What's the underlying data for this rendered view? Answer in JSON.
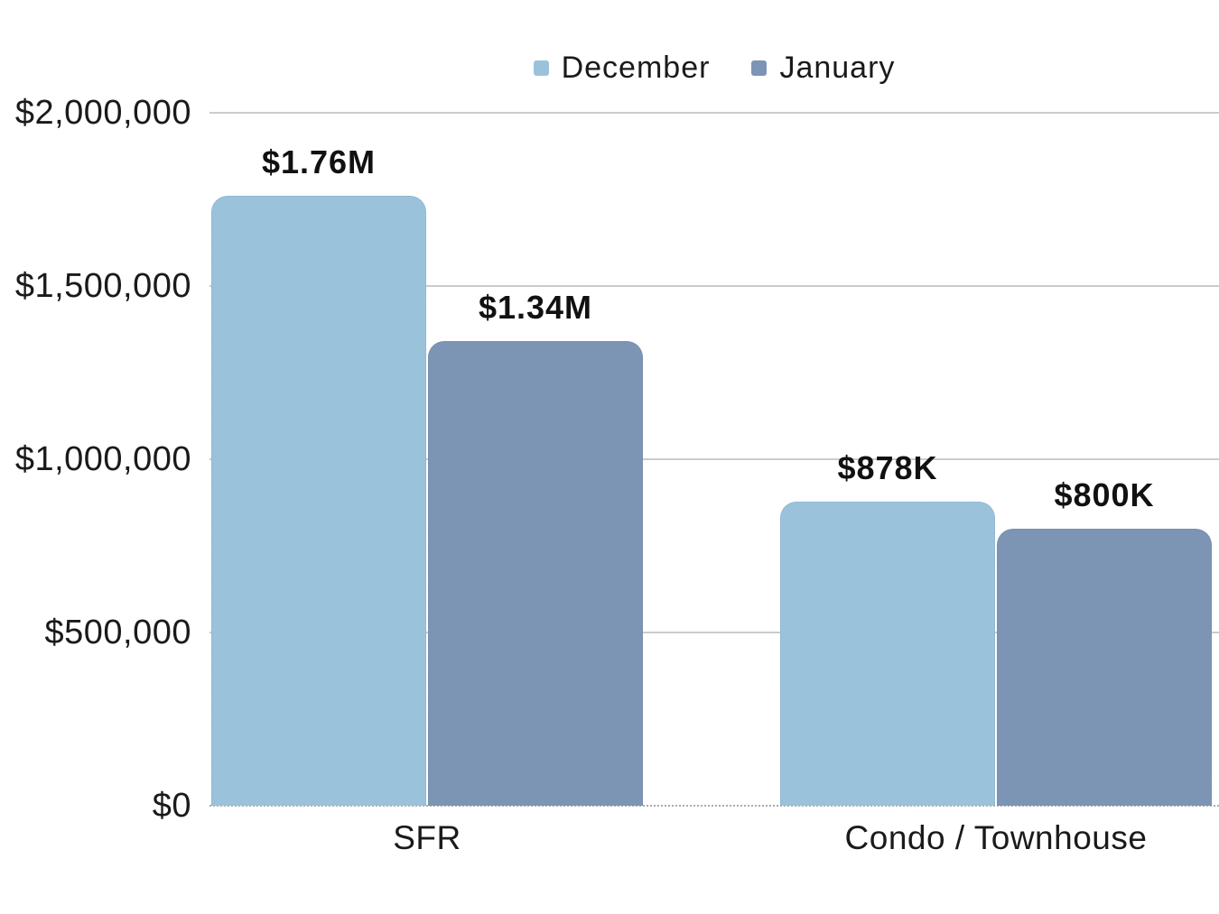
{
  "chart_data": {
    "type": "bar",
    "title": "",
    "categories": [
      "SFR",
      "Condo / Townhouse"
    ],
    "series": [
      {
        "name": "December",
        "color": "#9AC3DB",
        "values": [
          1760000,
          878000
        ],
        "labels": [
          "$1.76M",
          "$878K"
        ]
      },
      {
        "name": "January",
        "color": "#7D95B4",
        "values": [
          1340000,
          800000
        ],
        "labels": [
          "$1.34M",
          "$800K"
        ]
      }
    ],
    "ylim": [
      0,
      2000000
    ],
    "y_ticks": [
      {
        "value": 2000000,
        "label": "$2,000,000"
      },
      {
        "value": 1500000,
        "label": "$1,500,000"
      },
      {
        "value": 1000000,
        "label": "$1,000,000"
      },
      {
        "value": 500000,
        "label": "$500,000"
      },
      {
        "value": 0,
        "label": "$0"
      }
    ],
    "legend": {
      "position": "top-center",
      "entries": [
        "December",
        "January"
      ]
    },
    "grid": true,
    "colors": {
      "grid_line": "#CBCBCB",
      "zero_line": "#ABABAB",
      "text": "#1A1A1A",
      "background": "#FFFFFF"
    }
  }
}
